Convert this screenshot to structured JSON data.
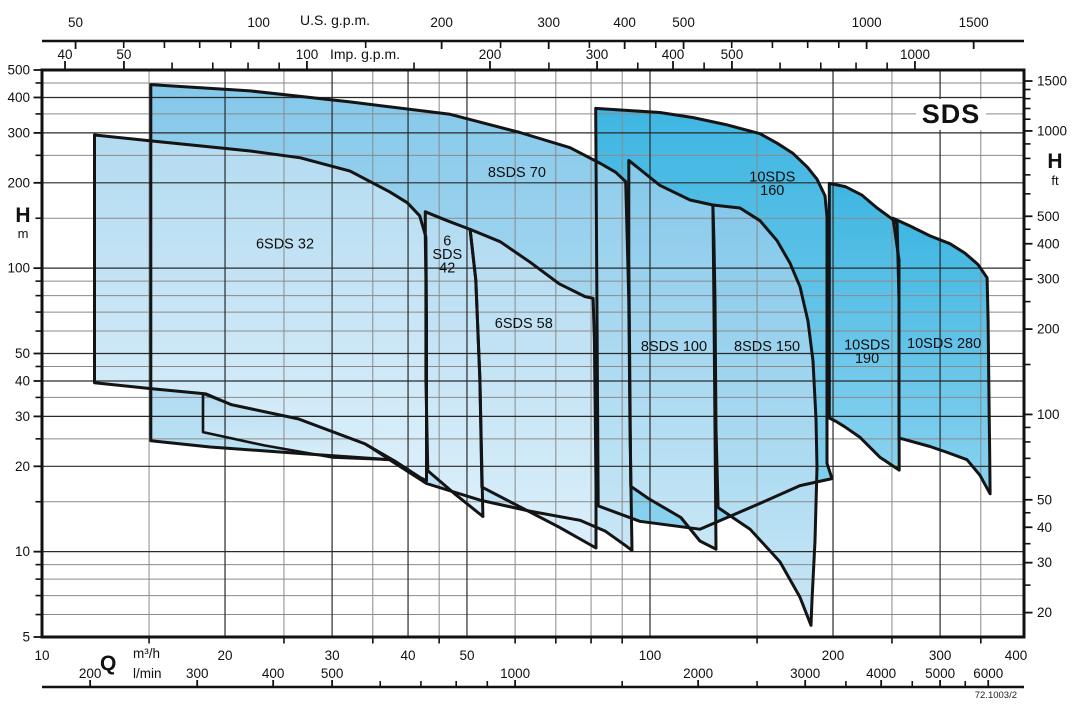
{
  "title": "SDS",
  "figure_code": "72.1003/2",
  "axis_captions": {
    "us": "U.S. g.p.m.",
    "imp": "Imp. g.p.m.",
    "head_symbol": "H",
    "left_unit": "m",
    "right_unit": "ft",
    "flow_symbol": "Q",
    "bottom_unit_1": "m³/h",
    "bottom_unit_2": "l/min"
  },
  "colors": {
    "outline": "#141414",
    "grid_major": "#2a2a2a",
    "grid_minor": "#8a8a8a",
    "frame": "#111111",
    "family6_top": "#b3dbf1",
    "family6_bottom": "#dbeffa",
    "family8_top": "#84c8ea",
    "family8_bottom": "#c8e7f6",
    "family10_top": "#3eb6e2",
    "family10_bottom": "#8ad2ef"
  },
  "chart_data": {
    "type": "area",
    "title": "SDS",
    "description": "Pump selection range chart: head H vs flow Q, log-log axes, operating envelopes per pump model",
    "x_axis": {
      "unit": "m³/h",
      "scale": "log",
      "range": [
        10,
        400
      ]
    },
    "y_axis_left": {
      "unit": "m",
      "scale": "log",
      "range": [
        5,
        500
      ]
    },
    "grid": {
      "q_major": [
        20,
        30,
        40,
        50,
        100,
        200,
        300
      ],
      "q_minor": [
        15,
        25,
        35,
        45,
        60,
        70,
        80,
        90,
        150,
        250,
        350
      ],
      "h_major": [
        400,
        300,
        200,
        100,
        50,
        40,
        30,
        20,
        10
      ],
      "h_minor": [
        450,
        350,
        250,
        150,
        90,
        80,
        70,
        60,
        45,
        35,
        25,
        15,
        9,
        8,
        7,
        6
      ]
    },
    "axes_ticks": {
      "us_gpm": {
        "factor": 0.22712,
        "labeled": [
          50,
          100,
          200,
          300,
          400,
          500,
          1000,
          1500
        ],
        "minor": [
          60,
          70,
          80,
          90,
          150,
          250,
          350,
          450,
          600,
          700,
          800,
          900
        ]
      },
      "imp_gpm": {
        "factor": 0.27277,
        "labeled": [
          40,
          50,
          100,
          200,
          300,
          400,
          500,
          1000
        ],
        "minor": [
          60,
          70,
          80,
          90,
          150,
          250,
          350,
          450,
          600,
          700,
          800,
          900
        ]
      },
      "h_m": {
        "factor": 1,
        "labeled": [
          500,
          400,
          300,
          200,
          100,
          50,
          40,
          30,
          20,
          10,
          5
        ],
        "minor": [
          450,
          350,
          250,
          150,
          90,
          80,
          70,
          60,
          45,
          35,
          25,
          15,
          9,
          8,
          7,
          6
        ]
      },
      "h_ft": {
        "factor": 0.3048,
        "labeled": [
          1500,
          1000,
          500,
          400,
          300,
          200,
          100,
          50,
          40,
          30,
          20
        ],
        "minor": [
          1400,
          1300,
          1200,
          1100,
          900,
          800,
          700,
          600,
          450,
          350,
          250,
          150,
          90,
          80,
          70,
          60,
          45,
          35,
          25
        ]
      },
      "q_m3h": {
        "factor": 1,
        "labeled": [
          10,
          20,
          30,
          40,
          50,
          100,
          200,
          300,
          400
        ],
        "minor": [
          15,
          25,
          35,
          45,
          60,
          70,
          80,
          90,
          150,
          250,
          350
        ]
      },
      "q_lmin": {
        "factor": 0.06,
        "labeled": [
          200,
          300,
          400,
          500,
          1000,
          2000,
          3000,
          4000,
          5000,
          6000
        ],
        "minor": [
          600,
          700,
          800,
          900,
          1500,
          2500,
          3500,
          4500,
          5500
        ]
      }
    },
    "envelopes": [
      {
        "name": "10SDS 160",
        "family": "10",
        "label_lines": [
          "10SDS",
          "160"
        ],
        "label_pos": [
          158.9,
          199
        ],
        "points": [
          [
            81.4,
            366
          ],
          [
            91.5,
            360
          ],
          [
            103.8,
            354
          ],
          [
            117.5,
            340
          ],
          [
            133.3,
            321
          ],
          [
            151.7,
            298
          ],
          [
            161.8,
            276
          ],
          [
            171.9,
            254
          ],
          [
            181.5,
            227
          ],
          [
            188.2,
            206
          ],
          [
            194,
            180
          ],
          [
            195.5,
            152
          ],
          [
            195.5,
            51.9
          ],
          [
            195.5,
            20.5
          ],
          [
            199.2,
            18.1
          ],
          [
            176.5,
            17.1
          ],
          [
            151.7,
            14.8
          ],
          [
            120.8,
            12
          ],
          [
            96.2,
            12.8
          ],
          [
            82.2,
            14.5
          ]
        ]
      },
      {
        "name": "10SDS 190",
        "family": "10",
        "label_lines": [
          "10SDS",
          "190"
        ],
        "label_pos": [
          227.5,
          50.8
        ],
        "points": [
          [
            197.2,
            199
          ],
          [
            209.4,
            194
          ],
          [
            223.1,
            181
          ],
          [
            236.3,
            163
          ],
          [
            248.2,
            151
          ],
          [
            254.9,
            144
          ],
          [
            256.8,
            77.2
          ],
          [
            256.8,
            34.5
          ],
          [
            257,
            19.4
          ],
          [
            239,
            21.5
          ],
          [
            221.6,
            25.3
          ],
          [
            209,
            27.6
          ],
          [
            202.3,
            28.8
          ],
          [
            197.2,
            29.6
          ]
        ]
      },
      {
        "name": "10SDS 280",
        "family": "10",
        "label_lines": [
          "10SDS 280"
        ],
        "label_pos": [
          304.6,
          54.3
        ],
        "points": [
          [
            251,
            150
          ],
          [
            267.5,
            141
          ],
          [
            288.7,
            130
          ],
          [
            311.4,
            122
          ],
          [
            329.6,
            113
          ],
          [
            346.3,
            103
          ],
          [
            358.4,
            92.5
          ],
          [
            359.8,
            65.6
          ],
          [
            361.1,
            34.5
          ],
          [
            362,
            22
          ],
          [
            362.5,
            16
          ],
          [
            349,
            18.6
          ],
          [
            332.2,
            21.1
          ],
          [
            308.1,
            22.4
          ],
          [
            288.7,
            23.5
          ],
          [
            259.8,
            25
          ],
          [
            256.8,
            25
          ],
          [
            256.8,
            51.9
          ],
          [
            256.8,
            106.9
          ]
        ]
      },
      {
        "name": "8SDS 70",
        "family": "8",
        "label_lines": [
          "8SDS 70"
        ],
        "label_pos": [
          60.4,
          218
        ],
        "points": [
          [
            15.1,
            444
          ],
          [
            22,
            422
          ],
          [
            32.1,
            386
          ],
          [
            46.9,
            349
          ],
          [
            61.1,
            301
          ],
          [
            73.9,
            266
          ],
          [
            82.9,
            234
          ],
          [
            87.8,
            218
          ],
          [
            91.2,
            202
          ],
          [
            92.3,
            77.2
          ],
          [
            92.7,
            27.1
          ],
          [
            93.4,
            10.1
          ],
          [
            91.2,
            10.5
          ],
          [
            84.5,
            11.8
          ],
          [
            76.7,
            12.9
          ],
          [
            63.4,
            13.9
          ],
          [
            52.5,
            15.2
          ],
          [
            42.9,
            17.4
          ],
          [
            37.3,
            21.1
          ],
          [
            26.6,
            22.2
          ],
          [
            18.9,
            23.4
          ],
          [
            15.1,
            24.6
          ]
        ]
      },
      {
        "name": "8SDS 100",
        "family": "8",
        "label_lines": [
          "8SDS 100"
        ],
        "label_pos": [
          109.5,
          53
        ],
        "points": [
          [
            92.3,
            240
          ],
          [
            103.8,
            196
          ],
          [
            116.4,
            174
          ],
          [
            126.9,
            167
          ],
          [
            127.4,
            77.2
          ],
          [
            127.9,
            27.1
          ],
          [
            128.4,
            10.2
          ],
          [
            120.8,
            10.9
          ],
          [
            112.4,
            13.2
          ],
          [
            99.4,
            15.4
          ],
          [
            93,
            17
          ],
          [
            92.7,
            34.5
          ],
          [
            92.3,
            108.8
          ]
        ]
      },
      {
        "name": "8SDS 150",
        "family": "8",
        "label_lines": [
          "8SDS 150"
        ],
        "label_pos": [
          155.8,
          53
        ],
        "points": [
          [
            126.9,
            167
          ],
          [
            140.6,
            163
          ],
          [
            151.7,
            147
          ],
          [
            161.8,
            125
          ],
          [
            170,
            104
          ],
          [
            176.5,
            86
          ],
          [
            181.9,
            65
          ],
          [
            185.4,
            47
          ],
          [
            187.5,
            29.4
          ],
          [
            188.2,
            19.8
          ],
          [
            186.8,
            10.9
          ],
          [
            184.7,
            6.75
          ],
          [
            184,
            5.5
          ],
          [
            176.5,
            6.9
          ],
          [
            163.6,
            9.2
          ],
          [
            146.1,
            12
          ],
          [
            129.4,
            14.3
          ],
          [
            128.4,
            27.1
          ],
          [
            127.9,
            77.2
          ],
          [
            127.4,
            125.7
          ]
        ]
      },
      {
        "name": "6SDS 32",
        "family": "6",
        "label_lines": [
          "6SDS 32"
        ],
        "label_pos": [
          25.1,
          122
        ],
        "points": [
          [
            12.2,
            295
          ],
          [
            15.1,
            281
          ],
          [
            18.2,
            270
          ],
          [
            22,
            259
          ],
          [
            26.6,
            245
          ],
          [
            32.1,
            220
          ],
          [
            37.3,
            186
          ],
          [
            39.9,
            170
          ],
          [
            41.8,
            153
          ],
          [
            42.8,
            128.8
          ],
          [
            42.9,
            65.6
          ],
          [
            42.9,
            17.8
          ],
          [
            41.8,
            18.3
          ],
          [
            38,
            20.9
          ],
          [
            34,
            24
          ],
          [
            26.4,
            29.4
          ],
          [
            20.5,
            33
          ],
          [
            18.6,
            36
          ],
          [
            15.1,
            37.6
          ],
          [
            12.2,
            39.4
          ]
        ]
      },
      {
        "name": "6SDS 42",
        "family": "6",
        "label_lines": [
          "6",
          "SDS",
          "42"
        ],
        "label_pos": [
          46.4,
          112
        ],
        "points": [
          [
            42.7,
            158
          ],
          [
            46.4,
            147
          ],
          [
            50.6,
            137
          ],
          [
            51.7,
            90.8
          ],
          [
            52.5,
            40.4
          ],
          [
            53.1,
            13.3
          ],
          [
            47.9,
            15.9
          ],
          [
            43.1,
            19.3
          ],
          [
            42.8,
            40.4
          ],
          [
            42.8,
            90.8
          ],
          [
            42.7,
            128.8
          ]
        ]
      },
      {
        "name": "6SDS 58",
        "family": "6",
        "label_lines": [
          "6SDS 58"
        ],
        "label_pos": [
          62,
          64
        ],
        "points": [
          [
            50.6,
            137
          ],
          [
            56.7,
            124
          ],
          [
            63.5,
            105
          ],
          [
            70.9,
            88.1
          ],
          [
            78.2,
            79.4
          ],
          [
            80.6,
            78.3
          ],
          [
            81,
            56.2
          ],
          [
            81.3,
            29.4
          ],
          [
            81.5,
            16.9
          ],
          [
            81.5,
            10.3
          ],
          [
            70.9,
            12.2
          ],
          [
            61.1,
            14.4
          ],
          [
            52.9,
            16.9
          ],
          [
            52.5,
            40.4
          ],
          [
            51.7,
            90.8
          ]
        ]
      }
    ],
    "sub_regions": [
      {
        "name": "6SDS 32 low-stage step",
        "family": "6",
        "points": [
          [
            18.4,
            36.1
          ],
          [
            20.5,
            33
          ],
          [
            26.4,
            29.4
          ],
          [
            34,
            24
          ],
          [
            37.3,
            21.1
          ],
          [
            30,
            21.5
          ],
          [
            23.2,
            23.7
          ],
          [
            18.4,
            26.4
          ]
        ]
      }
    ]
  }
}
